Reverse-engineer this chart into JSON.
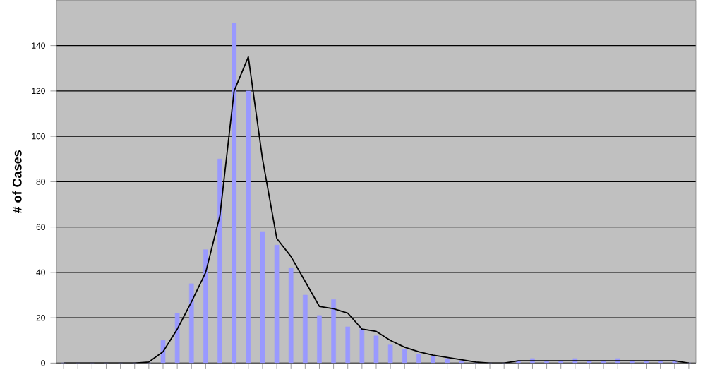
{
  "chart_data": {
    "type": "bar",
    "ylabel": "# of Cases",
    "categories": [
      null,
      null,
      null,
      null,
      null,
      null,
      null,
      null,
      null,
      null,
      null,
      null,
      null,
      null,
      null,
      null,
      null,
      null,
      null,
      null,
      null,
      null,
      null,
      null,
      null,
      null,
      null,
      null,
      null,
      null,
      null,
      null,
      null,
      null,
      null,
      null,
      null,
      null,
      null,
      null,
      null,
      null,
      null,
      null,
      null
    ],
    "series": [
      {
        "color": "#9999ff",
        "values": [
          0,
          0,
          0,
          0,
          0,
          0,
          0,
          10,
          22,
          35,
          50,
          90,
          150,
          120,
          58,
          52,
          42,
          30,
          21,
          28,
          16,
          15,
          12,
          8,
          6,
          4,
          3,
          2,
          1,
          0,
          0,
          0,
          1,
          2,
          1,
          1,
          2,
          1,
          1,
          2,
          1,
          1,
          1,
          1,
          0
        ]
      },
      {
        "type": "line",
        "color": "#000000",
        "values": [
          0,
          0,
          0,
          0,
          0,
          0,
          0.5,
          5,
          15,
          27,
          40,
          65,
          120,
          135,
          90,
          55,
          47,
          36,
          25,
          24,
          22,
          15,
          14,
          10,
          7,
          5,
          3.5,
          2.5,
          1.5,
          0.5,
          0,
          0,
          1,
          1,
          1,
          1,
          1,
          1,
          1,
          1,
          1,
          1,
          1,
          1,
          0
        ]
      }
    ],
    "ylim": [
      0,
      160
    ],
    "yticks": [
      0,
      20,
      40,
      60,
      80,
      100,
      120,
      140
    ],
    "grid": "y"
  }
}
